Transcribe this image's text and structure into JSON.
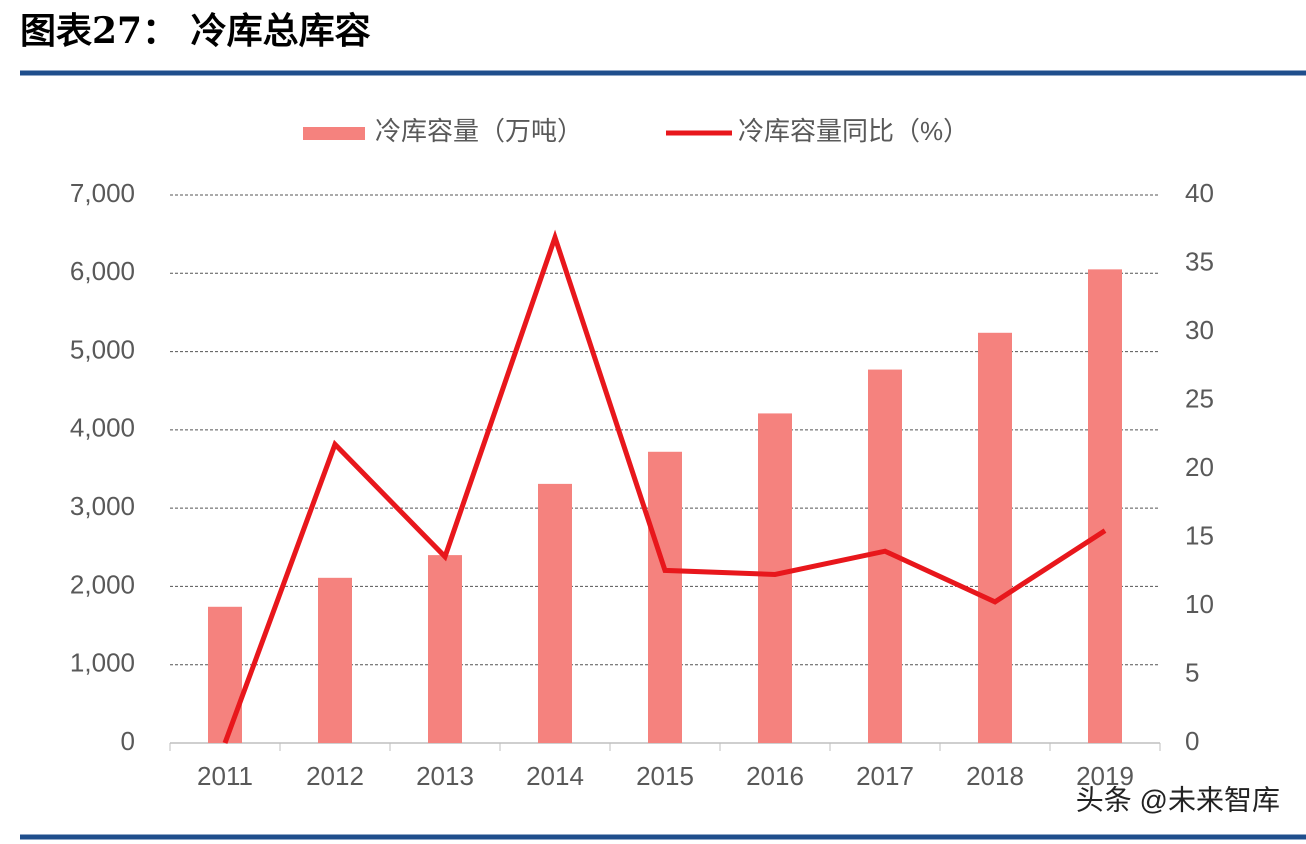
{
  "title": "图表27：    冷库总库容",
  "watermark": "头条 @未来智库",
  "chart_data": {
    "type": "bar_line",
    "categories": [
      "2011",
      "2012",
      "2013",
      "2014",
      "2015",
      "2016",
      "2017",
      "2018",
      "2019"
    ],
    "series": [
      {
        "name": "冷库容量（万吨）",
        "type": "bar",
        "color": "#f5827e",
        "values": [
          1740,
          2110,
          2400,
          3310,
          3720,
          4210,
          4770,
          5240,
          6050
        ]
      },
      {
        "name": "冷库容量同比（%）",
        "type": "line",
        "axis": "y2",
        "color": "#e8171c",
        "values": [
          0,
          21.8,
          13.6,
          36.9,
          12.6,
          12.3,
          14.0,
          10.3,
          15.5
        ]
      }
    ],
    "ylim": [
      0,
      7000
    ],
    "yticks": [
      0,
      {
        "value": 1000,
        "label": "1,000"
      },
      {
        "value": 2000,
        "label": "2,000"
      },
      {
        "value": 3000,
        "label": "3,000"
      },
      {
        "value": 4000,
        "label": "4,000"
      },
      {
        "value": 5000,
        "label": "5,000"
      },
      {
        "value": 6000,
        "label": "6,000"
      },
      {
        "value": 7000,
        "label": "7,000"
      }
    ],
    "y2lim": [
      0,
      40
    ],
    "y2ticks": [
      0,
      5,
      10,
      15,
      20,
      25,
      30,
      35,
      40
    ],
    "grid": true,
    "legend": "top"
  }
}
